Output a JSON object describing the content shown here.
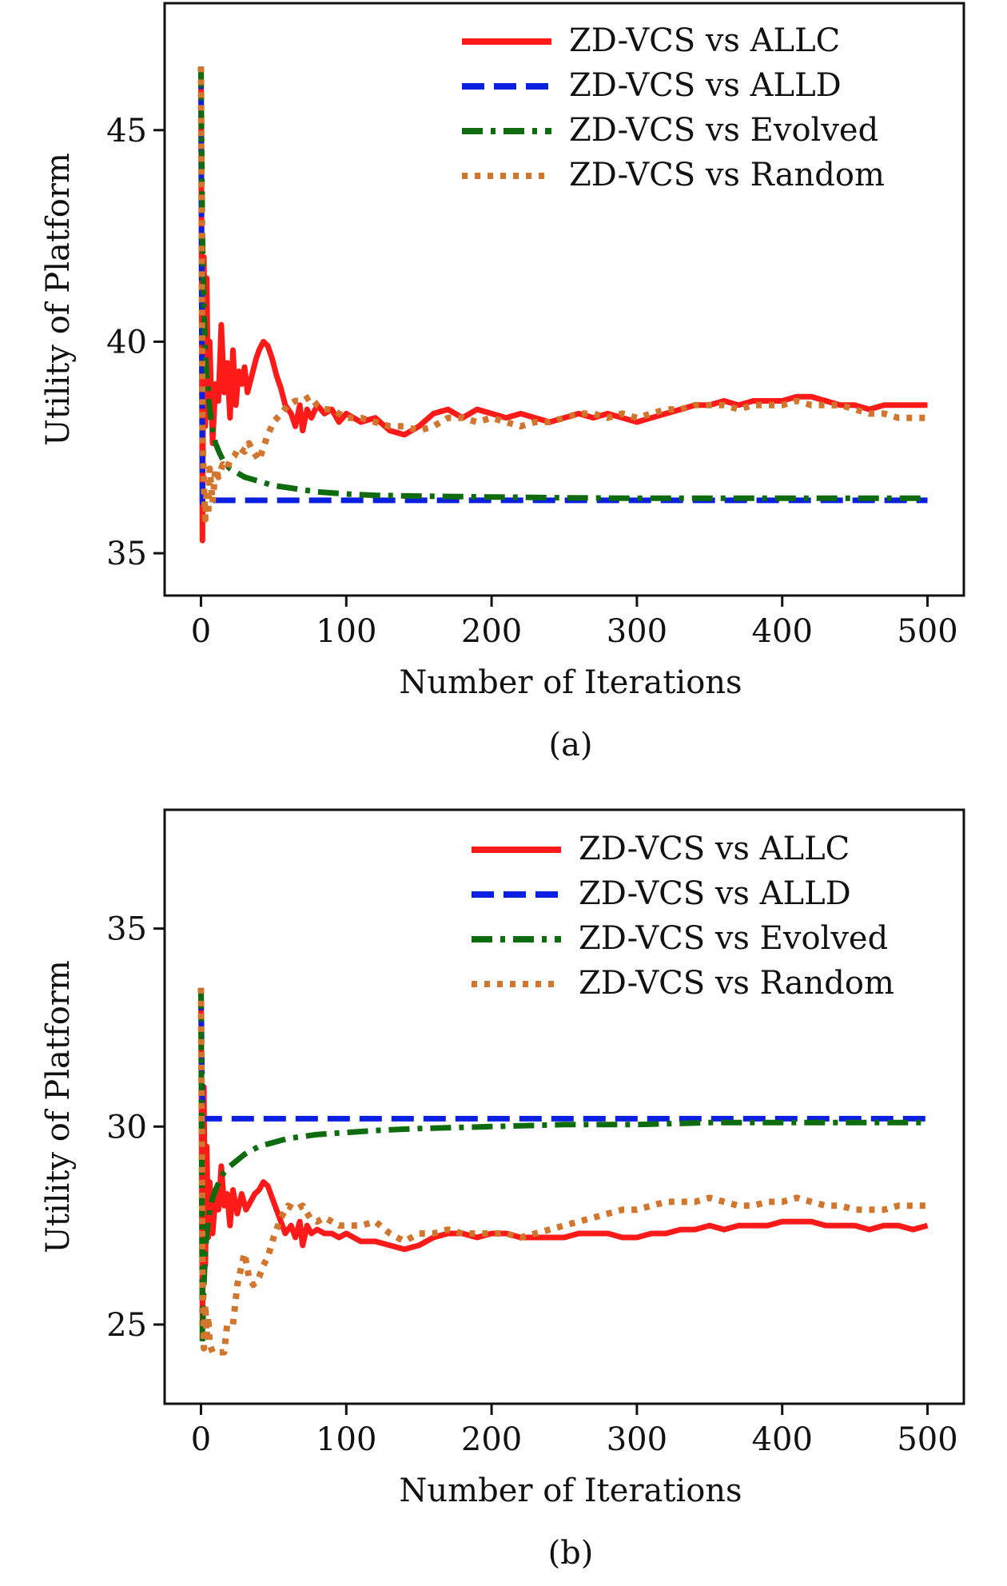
{
  "chart_data": [
    {
      "type": "line",
      "caption": "(a)",
      "xlabel": "Number of Iterations",
      "ylabel": "Utility of Platform",
      "xlim": [
        -25,
        525
      ],
      "ylim": [
        34.0,
        48.0
      ],
      "xticks": [
        0,
        100,
        200,
        300,
        400,
        500
      ],
      "yticks": [
        35,
        40,
        45
      ],
      "grid": false,
      "legend_position": "top-right",
      "series": [
        {
          "name": "ZD-VCS vs ALLC",
          "color": "#ff1a1a",
          "style": "solid",
          "x": [
            0,
            1,
            2,
            3,
            4,
            5,
            6,
            8,
            10,
            12,
            14,
            16,
            18,
            20,
            22,
            24,
            26,
            28,
            30,
            32,
            35,
            38,
            40,
            43,
            46,
            49,
            52,
            55,
            58,
            62,
            65,
            68,
            70,
            73,
            76,
            80,
            85,
            90,
            95,
            100,
            110,
            120,
            130,
            140,
            150,
            160,
            170,
            180,
            190,
            200,
            210,
            220,
            230,
            240,
            250,
            260,
            270,
            280,
            290,
            300,
            310,
            320,
            330,
            340,
            350,
            360,
            370,
            380,
            390,
            400,
            410,
            420,
            430,
            440,
            450,
            460,
            470,
            480,
            490,
            500
          ],
          "y": [
            46.5,
            35.3,
            42.0,
            38.0,
            41.5,
            38.3,
            40.0,
            37.6,
            39.0,
            38.6,
            40.4,
            38.8,
            39.5,
            38.2,
            39.8,
            38.5,
            39.3,
            39.0,
            39.4,
            38.8,
            39.2,
            39.6,
            39.8,
            40.0,
            39.9,
            39.6,
            39.2,
            38.9,
            38.5,
            38.3,
            38.0,
            38.5,
            37.9,
            38.4,
            38.2,
            38.5,
            38.3,
            38.4,
            38.1,
            38.3,
            38.1,
            38.2,
            37.9,
            37.8,
            38.0,
            38.3,
            38.4,
            38.2,
            38.4,
            38.3,
            38.2,
            38.3,
            38.2,
            38.1,
            38.2,
            38.3,
            38.2,
            38.3,
            38.2,
            38.1,
            38.2,
            38.3,
            38.4,
            38.5,
            38.5,
            38.6,
            38.5,
            38.6,
            38.6,
            38.6,
            38.7,
            38.7,
            38.6,
            38.5,
            38.5,
            38.4,
            38.5,
            38.5,
            38.5,
            38.5
          ]
        },
        {
          "name": "ZD-VCS vs ALLD",
          "color": "#0a1fe0",
          "style": "dashed",
          "x": [
            0,
            1,
            2,
            3,
            5,
            10,
            100,
            200,
            300,
            400,
            500
          ],
          "y": [
            46.5,
            36.2,
            36.25,
            36.25,
            36.25,
            36.25,
            36.25,
            36.25,
            36.25,
            36.25,
            36.25
          ]
        },
        {
          "name": "ZD-VCS vs Evolved",
          "color": "#0e6b0e",
          "style": "dashdot",
          "x": [
            0,
            1,
            2,
            3,
            4,
            5,
            6,
            8,
            10,
            13,
            16,
            20,
            25,
            30,
            40,
            50,
            60,
            70,
            80,
            100,
            120,
            150,
            200,
            250,
            300,
            350,
            400,
            450,
            500
          ],
          "y": [
            46.5,
            42.5,
            40.8,
            39.8,
            39.2,
            38.8,
            38.4,
            37.9,
            37.6,
            37.35,
            37.15,
            37.0,
            36.9,
            36.8,
            36.7,
            36.6,
            36.55,
            36.5,
            36.45,
            36.4,
            36.37,
            36.35,
            36.33,
            36.31,
            36.3,
            36.3,
            36.3,
            36.3,
            36.3
          ]
        },
        {
          "name": "ZD-VCS vs Random",
          "color": "#d2752d",
          "style": "dotted",
          "x": [
            0,
            1,
            2,
            3,
            4,
            5,
            6,
            8,
            10,
            12,
            15,
            18,
            20,
            23,
            26,
            30,
            33,
            36,
            40,
            43,
            46,
            50,
            55,
            60,
            65,
            70,
            75,
            80,
            85,
            90,
            95,
            100,
            110,
            120,
            130,
            140,
            150,
            160,
            170,
            180,
            190,
            200,
            210,
            220,
            230,
            240,
            250,
            260,
            270,
            280,
            290,
            300,
            310,
            320,
            330,
            340,
            350,
            360,
            370,
            380,
            390,
            400,
            410,
            420,
            430,
            440,
            450,
            460,
            470,
            480,
            490,
            500
          ],
          "y": [
            46.5,
            38.0,
            36.6,
            35.8,
            36.5,
            35.9,
            37.0,
            36.2,
            37.0,
            36.8,
            37.1,
            37.0,
            37.2,
            37.3,
            37.5,
            37.4,
            37.6,
            37.4,
            37.2,
            37.5,
            37.8,
            38.1,
            38.3,
            38.5,
            38.6,
            38.6,
            38.7,
            38.5,
            38.4,
            38.4,
            38.3,
            38.2,
            38.2,
            38.1,
            38.0,
            38.0,
            37.9,
            38.0,
            38.2,
            38.2,
            38.1,
            38.2,
            38.1,
            38.0,
            38.1,
            38.1,
            38.2,
            38.3,
            38.3,
            38.2,
            38.3,
            38.2,
            38.3,
            38.4,
            38.4,
            38.5,
            38.5,
            38.5,
            38.4,
            38.5,
            38.5,
            38.5,
            38.6,
            38.5,
            38.5,
            38.5,
            38.4,
            38.3,
            38.3,
            38.2,
            38.2,
            38.2
          ]
        }
      ]
    },
    {
      "type": "line",
      "caption": "(b)",
      "xlabel": "Number of Iterations",
      "ylabel": "Utility of Platform",
      "xlim": [
        -25,
        525
      ],
      "ylim": [
        23.0,
        38.0
      ],
      "xticks": [
        0,
        100,
        200,
        300,
        400,
        500
      ],
      "yticks": [
        25,
        30,
        35
      ],
      "grid": false,
      "legend_position": "top-right",
      "series": [
        {
          "name": "ZD-VCS vs ALLC",
          "color": "#ff1a1a",
          "style": "solid",
          "x": [
            0,
            1,
            2,
            3,
            4,
            5,
            6,
            8,
            10,
            12,
            14,
            16,
            18,
            20,
            22,
            25,
            28,
            31,
            34,
            37,
            40,
            43,
            46,
            49,
            52,
            55,
            58,
            62,
            65,
            68,
            70,
            73,
            76,
            80,
            85,
            90,
            95,
            100,
            110,
            120,
            130,
            140,
            150,
            160,
            170,
            180,
            190,
            200,
            210,
            220,
            230,
            240,
            250,
            260,
            270,
            280,
            290,
            300,
            310,
            320,
            330,
            340,
            350,
            360,
            370,
            380,
            390,
            400,
            410,
            420,
            430,
            440,
            450,
            460,
            470,
            480,
            490,
            500
          ],
          "y": [
            33.5,
            25.0,
            31.0,
            26.5,
            29.5,
            27.2,
            28.6,
            27.3,
            28.2,
            27.9,
            29.0,
            28.0,
            28.3,
            27.5,
            28.4,
            27.8,
            28.3,
            27.9,
            28.1,
            28.3,
            28.4,
            28.6,
            28.5,
            28.2,
            27.9,
            27.6,
            27.3,
            27.5,
            27.2,
            27.6,
            27.0,
            27.5,
            27.3,
            27.4,
            27.3,
            27.3,
            27.2,
            27.3,
            27.1,
            27.1,
            27.0,
            26.9,
            27.0,
            27.2,
            27.3,
            27.3,
            27.2,
            27.3,
            27.3,
            27.2,
            27.2,
            27.2,
            27.2,
            27.3,
            27.3,
            27.3,
            27.2,
            27.2,
            27.3,
            27.3,
            27.4,
            27.4,
            27.5,
            27.4,
            27.5,
            27.5,
            27.5,
            27.6,
            27.6,
            27.6,
            27.5,
            27.5,
            27.5,
            27.4,
            27.5,
            27.5,
            27.4,
            27.5
          ]
        },
        {
          "name": "ZD-VCS vs ALLD",
          "color": "#0a1fe0",
          "style": "dashed",
          "x": [
            0,
            1,
            2,
            3,
            5,
            10,
            100,
            200,
            300,
            400,
            500
          ],
          "y": [
            33.5,
            30.2,
            30.2,
            30.2,
            30.2,
            30.2,
            30.2,
            30.2,
            30.2,
            30.2,
            30.2
          ]
        },
        {
          "name": "ZD-VCS vs Evolved",
          "color": "#0e6b0e",
          "style": "dashdot",
          "x": [
            0,
            1,
            2,
            3,
            4,
            5,
            6,
            8,
            10,
            13,
            16,
            20,
            25,
            30,
            40,
            50,
            60,
            70,
            80,
            100,
            120,
            150,
            200,
            250,
            300,
            350,
            400,
            450,
            500
          ],
          "y": [
            33.5,
            24.5,
            26.0,
            26.8,
            27.3,
            27.6,
            27.9,
            28.2,
            28.4,
            28.65,
            28.85,
            29.0,
            29.15,
            29.3,
            29.5,
            29.6,
            29.7,
            29.75,
            29.8,
            29.85,
            29.9,
            29.95,
            30.0,
            30.05,
            30.05,
            30.1,
            30.1,
            30.1,
            30.1
          ]
        },
        {
          "name": "ZD-VCS vs Random",
          "color": "#d2752d",
          "style": "dotted",
          "x": [
            0,
            1,
            2,
            3,
            4,
            5,
            6,
            8,
            10,
            12,
            14,
            16,
            18,
            20,
            22,
            25,
            28,
            30,
            33,
            36,
            40,
            43,
            46,
            50,
            55,
            60,
            65,
            70,
            75,
            80,
            85,
            90,
            95,
            100,
            110,
            120,
            130,
            140,
            150,
            160,
            170,
            180,
            190,
            200,
            210,
            220,
            230,
            240,
            250,
            260,
            270,
            280,
            290,
            300,
            310,
            320,
            330,
            340,
            350,
            360,
            370,
            380,
            390,
            400,
            410,
            420,
            430,
            440,
            450,
            460,
            470,
            480,
            490,
            500
          ],
          "y": [
            33.5,
            26.5,
            24.4,
            25.5,
            24.7,
            25.2,
            24.5,
            24.3,
            24.3,
            24.3,
            24.3,
            24.3,
            25.0,
            25.0,
            25.0,
            26.0,
            26.5,
            26.8,
            26.2,
            26.0,
            26.2,
            26.5,
            26.7,
            27.2,
            27.7,
            28.0,
            27.9,
            28.0,
            27.7,
            27.6,
            27.7,
            27.6,
            27.5,
            27.5,
            27.5,
            27.6,
            27.3,
            27.1,
            27.3,
            27.3,
            27.4,
            27.3,
            27.3,
            27.3,
            27.3,
            27.2,
            27.3,
            27.4,
            27.5,
            27.6,
            27.7,
            27.8,
            27.9,
            27.9,
            28.0,
            28.1,
            28.1,
            28.1,
            28.2,
            28.1,
            28.0,
            28.0,
            28.1,
            28.1,
            28.2,
            28.1,
            28.0,
            28.0,
            27.9,
            27.9,
            27.9,
            28.0,
            28.0,
            28.0
          ]
        }
      ]
    }
  ]
}
